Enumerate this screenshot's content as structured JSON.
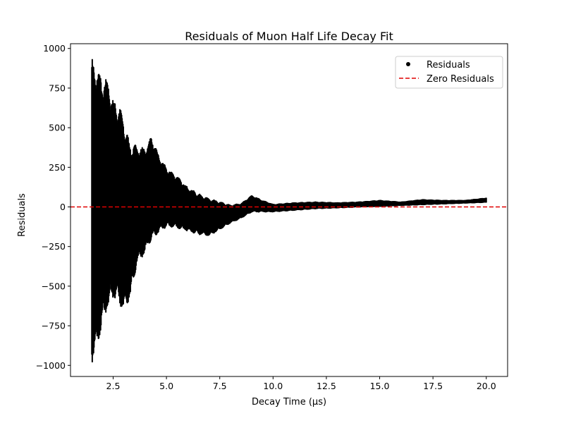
{
  "chart_data": {
    "type": "scatter",
    "title": "Residuals of Muon Half Life Decay Fit",
    "xlabel": "Decay Time (μs)",
    "ylabel": "Residuals",
    "xlim": [
      0.5,
      21.0
    ],
    "ylim": [
      -1070,
      1030
    ],
    "x_ticks": [
      2.5,
      5.0,
      7.5,
      10.0,
      12.5,
      15.0,
      17.5,
      20.0
    ],
    "x_tick_labels": [
      "2.5",
      "5.0",
      "7.5",
      "10.0",
      "12.5",
      "15.0",
      "17.5",
      "20.0"
    ],
    "y_ticks": [
      -1000,
      -750,
      -500,
      -250,
      0,
      250,
      500,
      750,
      1000
    ],
    "y_tick_labels": [
      "−1000",
      "−750",
      "−500",
      "−250",
      "0",
      "250",
      "500",
      "750",
      "1000"
    ],
    "grid": false,
    "legend_position": "top-right",
    "series": [
      {
        "name": "Residuals",
        "kind": "scatter",
        "color": "#000000",
        "x_range": [
          1.5,
          20.0
        ],
        "envelope": {
          "x": [
            1.5,
            1.7,
            2.0,
            2.2,
            2.5,
            2.8,
            3.0,
            3.3,
            3.6,
            4.0,
            4.3,
            4.6,
            5.0,
            5.5,
            6.0,
            6.5,
            7.0,
            7.5,
            8.0,
            8.5,
            9.0,
            9.5,
            10.0,
            11.0,
            12.0,
            13.0,
            14.0,
            15.0,
            16.0,
            17.0,
            18.0,
            19.0,
            20.0
          ],
          "upper": [
            910,
            870,
            780,
            800,
            660,
            620,
            530,
            380,
            380,
            360,
            440,
            330,
            240,
            190,
            120,
            80,
            50,
            30,
            10,
            20,
            70,
            40,
            15,
            25,
            30,
            25,
            30,
            40,
            30,
            45,
            40,
            40,
            55
          ],
          "lower": [
            -960,
            -900,
            -720,
            -640,
            -560,
            -600,
            -650,
            -560,
            -360,
            -280,
            -200,
            -160,
            -120,
            -130,
            -150,
            -170,
            -180,
            -140,
            -100,
            -70,
            -30,
            -30,
            -30,
            -20,
            -10,
            -5,
            0,
            5,
            10,
            15,
            20,
            25,
            30
          ]
        }
      },
      {
        "name": "Zero Residuals",
        "kind": "hline",
        "y": 0,
        "color": "#e00000",
        "style": "dashed"
      }
    ]
  }
}
